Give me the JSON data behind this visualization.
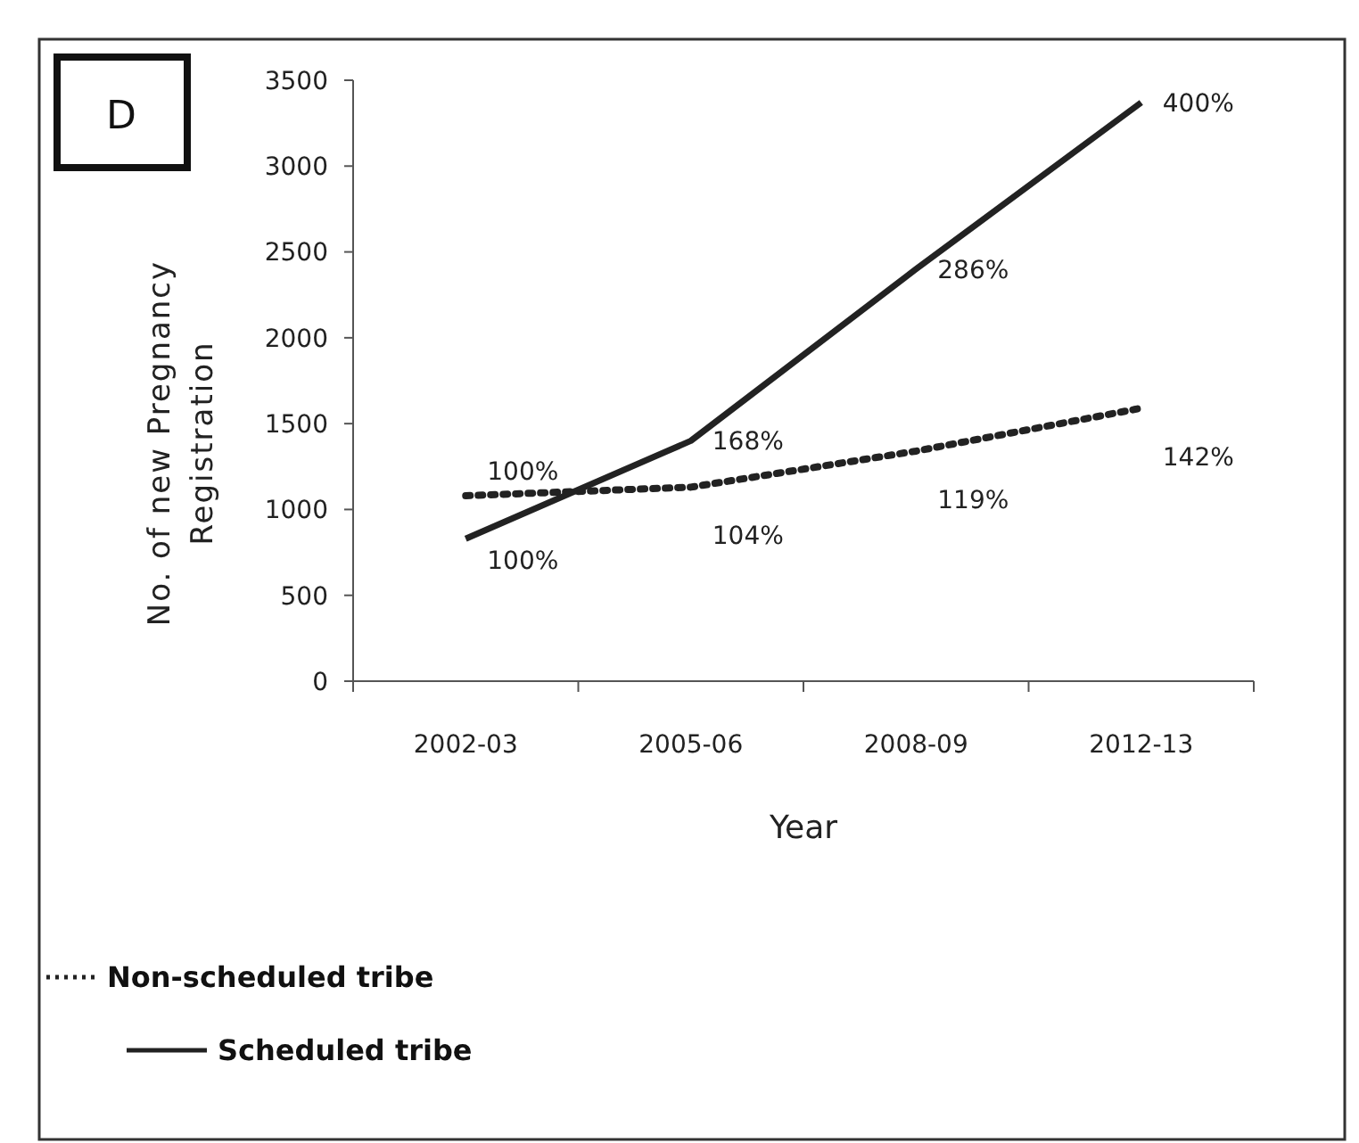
{
  "chart_data": {
    "type": "line",
    "xlabel": "Year",
    "ylabel": "No. of new Pregnancy Registration",
    "categories": [
      "2002-03",
      "2005-06",
      "2008-09",
      "2012-13"
    ],
    "series": [
      {
        "name": "Non-scheduled tribe",
        "color": "#222222",
        "line_style": "dotted",
        "values": [
          1080,
          1130,
          1340,
          1590
        ]
      },
      {
        "name": "Scheduled tribe",
        "color": "#222222",
        "line_style": "solid",
        "values": [
          830,
          1400,
          2400,
          3370
        ]
      }
    ],
    "ylim": [
      0,
      3500
    ],
    "yticks": [
      0,
      500,
      1000,
      1500,
      2000,
      2500,
      3000,
      3500
    ],
    "grid": false,
    "legend": "bottom left",
    "marker": "none",
    "annotations": [
      "D",
      {
        "text": "100%",
        "x": "2002-03",
        "y": 1080
      },
      {
        "text": "100%",
        "x": "2002-03",
        "y": 830
      },
      {
        "text": "168%",
        "x": "2005-06",
        "y": 1400
      },
      {
        "text": "104%",
        "x": "2005-06",
        "y": 1130
      },
      {
        "text": "286%",
        "x": "2008-09",
        "y": 2400
      },
      {
        "text": "119%",
        "x": "2008-09",
        "y": 1340
      },
      {
        "text": "400%",
        "x": "2012-13",
        "y": 3370
      },
      {
        "text": "142%",
        "x": "2012-13",
        "y": 1590
      }
    ]
  }
}
